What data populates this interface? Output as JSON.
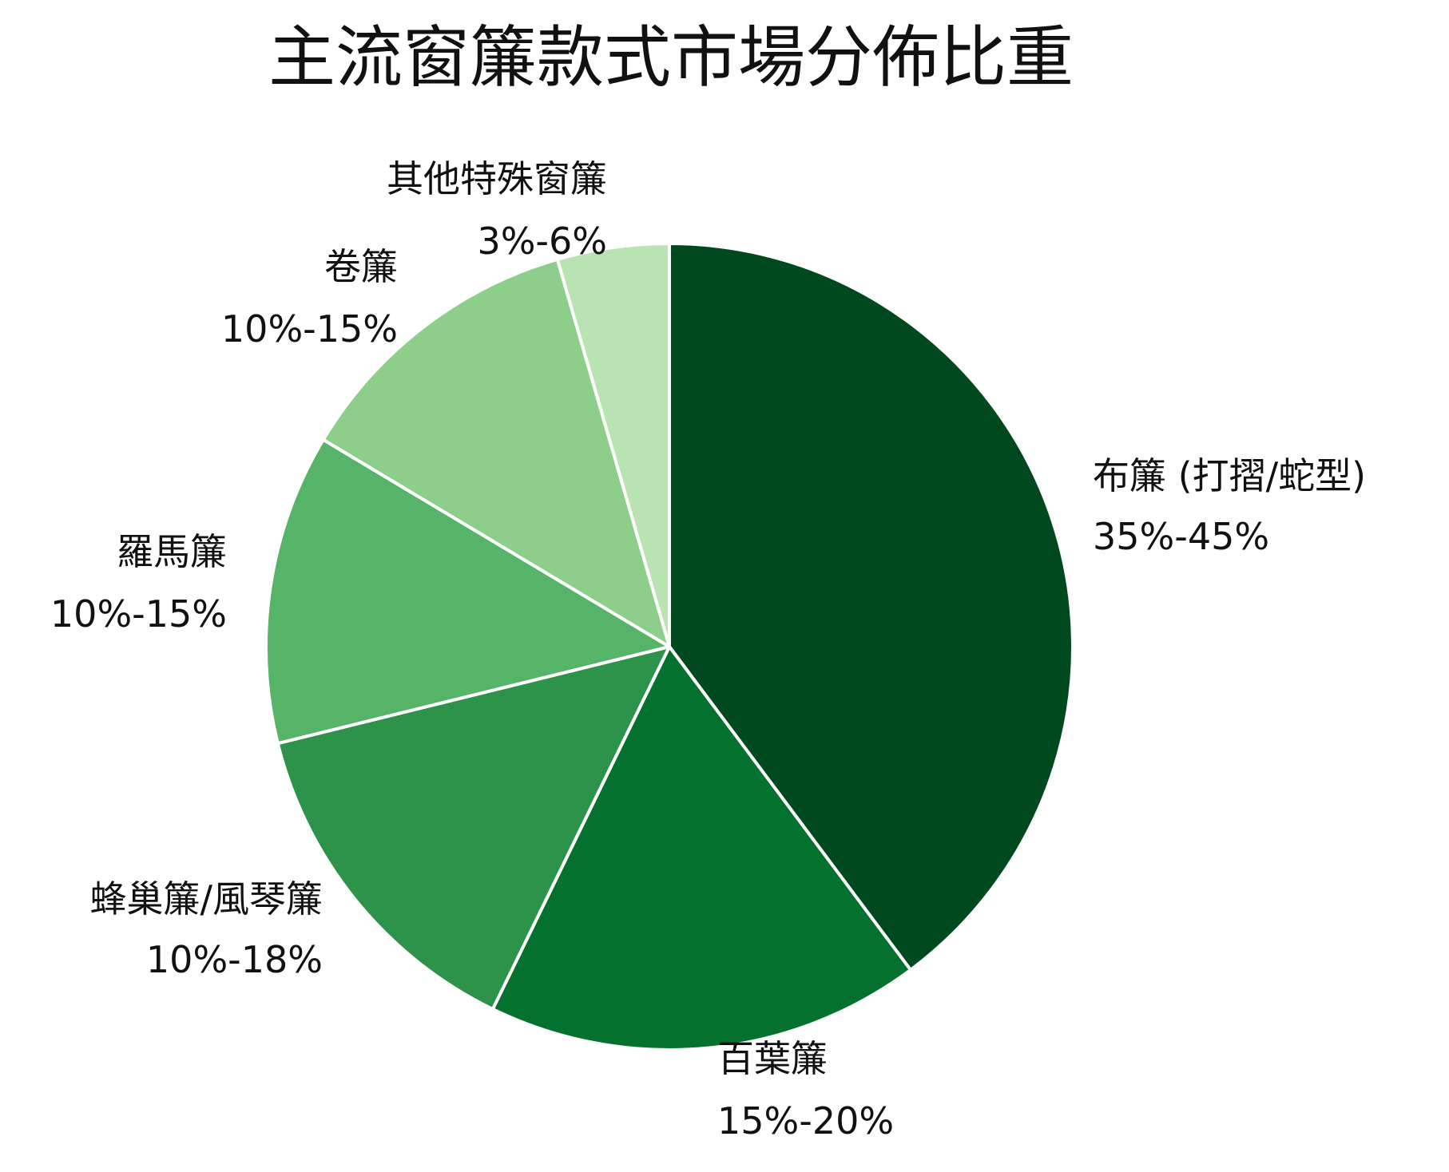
{
  "chart_data": {
    "type": "pie",
    "title": "主流窗簾款式市場分佈比重",
    "slices": [
      {
        "name": "布簾 (打摺/蛇型)",
        "value_label": "35%-45%",
        "value": 40,
        "color": "#00491f"
      },
      {
        "name": "百葉簾",
        "value_label": "15%-20%",
        "value": 17.5,
        "color": "#05712f"
      },
      {
        "name": "蜂巢簾/風琴簾",
        "value_label": "10%-18%",
        "value": 14,
        "color": "#2d924a"
      },
      {
        "name": "羅馬簾",
        "value_label": "10%-15%",
        "value": 12.5,
        "color": "#56b468"
      },
      {
        "name": "卷簾",
        "value_label": "10%-15%",
        "value": 12,
        "color": "#8dcf8a"
      },
      {
        "name": "其他特殊窗簾",
        "value_label": "3%-6%",
        "value": 4.5,
        "color": "#b9e3b2"
      }
    ],
    "start_angle": "top (12 o'clock)",
    "direction": "clockwise",
    "legend": "none (labels beside slices)"
  }
}
